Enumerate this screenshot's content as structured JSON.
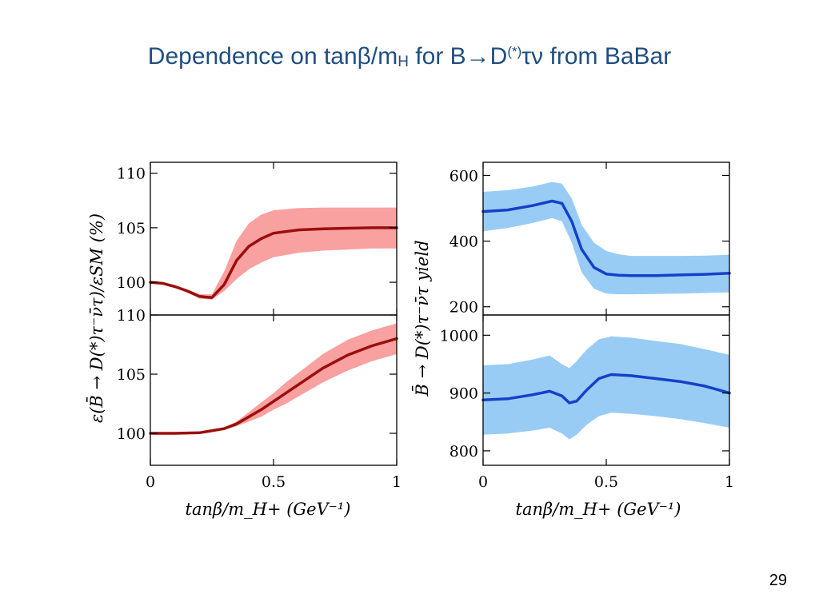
{
  "slide": {
    "title_parts": [
      "Dependence on tanβ/m",
      "H",
      " for B→D",
      "(*)",
      "τν from BaBar"
    ],
    "page_number": "29"
  },
  "colors": {
    "title": "#1f4e82",
    "left_band": "#f9a0a0",
    "left_line": "#9b0e0e",
    "right_band": "#99ccf5",
    "right_line": "#1541c8"
  },
  "chart_data": [
    {
      "type": "line",
      "panel": "left-top",
      "ylabel": "ε(B̄ → D(*)τ⁻ν̄τ)/εSM (%)",
      "xlim": [
        0,
        1
      ],
      "ylim": [
        97,
        111
      ],
      "yticks": [
        100,
        105,
        110
      ],
      "x": [
        0,
        0.05,
        0.1,
        0.15,
        0.2,
        0.25,
        0.3,
        0.35,
        0.4,
        0.45,
        0.5,
        0.6,
        0.7,
        0.8,
        0.9,
        1.0
      ],
      "central": [
        100.0,
        99.9,
        99.6,
        99.2,
        98.7,
        98.6,
        99.8,
        102.0,
        103.3,
        104.0,
        104.5,
        104.8,
        104.9,
        104.95,
        105.0,
        105.0
      ],
      "lower": [
        100.0,
        99.85,
        99.5,
        99.05,
        98.5,
        98.4,
        99.2,
        100.3,
        101.2,
        101.8,
        102.3,
        102.7,
        102.9,
        103.0,
        103.1,
        103.1
      ],
      "upper": [
        100.0,
        99.95,
        99.7,
        99.35,
        98.9,
        98.9,
        101.0,
        103.8,
        105.4,
        106.2,
        106.6,
        106.8,
        106.85,
        106.85,
        106.85,
        106.85
      ]
    },
    {
      "type": "line",
      "panel": "left-bottom",
      "xlabel": "tanβ/m_H+ (GeV⁻¹)",
      "xlim": [
        0,
        1
      ],
      "ylim": [
        97.3,
        110
      ],
      "yticks": [
        100,
        105,
        110
      ],
      "xticks": [
        "0",
        "0.5",
        "1"
      ],
      "x": [
        0,
        0.1,
        0.2,
        0.3,
        0.35,
        0.4,
        0.45,
        0.5,
        0.55,
        0.6,
        0.7,
        0.8,
        0.9,
        1.0
      ],
      "central": [
        100.0,
        100.0,
        100.05,
        100.4,
        100.8,
        101.4,
        102.0,
        102.7,
        103.4,
        104.1,
        105.5,
        106.6,
        107.4,
        108.0
      ],
      "lower": [
        100.0,
        100.0,
        100.03,
        100.3,
        100.6,
        101.0,
        101.4,
        102.0,
        102.5,
        103.1,
        104.3,
        105.3,
        106.1,
        106.7
      ],
      "upper": [
        100.0,
        100.0,
        100.07,
        100.5,
        101.0,
        101.8,
        102.6,
        103.4,
        104.3,
        105.1,
        106.7,
        107.9,
        108.7,
        109.3
      ]
    },
    {
      "type": "line",
      "panel": "right-top",
      "ylabel": "B̄ → D(*)τ⁻ν̄τ yield",
      "xlim": [
        0,
        1
      ],
      "ylim": [
        175,
        640
      ],
      "yticks": [
        200,
        400,
        600
      ],
      "x": [
        0,
        0.1,
        0.2,
        0.28,
        0.32,
        0.36,
        0.4,
        0.45,
        0.5,
        0.55,
        0.6,
        0.7,
        0.8,
        0.9,
        1.0
      ],
      "central": [
        490,
        495,
        508,
        522,
        515,
        460,
        375,
        320,
        300,
        296,
        295,
        295,
        297,
        299,
        302
      ],
      "lower": [
        430,
        440,
        455,
        470,
        460,
        395,
        305,
        255,
        240,
        238,
        238,
        239,
        240,
        242,
        244
      ],
      "upper": [
        550,
        555,
        566,
        580,
        575,
        530,
        450,
        395,
        370,
        360,
        355,
        355,
        355,
        356,
        358
      ]
    },
    {
      "type": "line",
      "panel": "right-bottom",
      "xlabel": "tanβ/m_H+ (GeV⁻¹)",
      "xlim": [
        0,
        1
      ],
      "ylim": [
        775,
        1035
      ],
      "yticks": [
        800,
        900,
        1000
      ],
      "xticks": [
        "0",
        "0.5",
        "1"
      ],
      "x": [
        0,
        0.1,
        0.2,
        0.27,
        0.32,
        0.35,
        0.38,
        0.42,
        0.47,
        0.52,
        0.6,
        0.7,
        0.8,
        0.9,
        1.0
      ],
      "central": [
        888,
        890,
        897,
        903,
        895,
        883,
        886,
        905,
        925,
        932,
        930,
        925,
        920,
        912,
        900
      ],
      "lower": [
        828,
        830,
        835,
        840,
        830,
        820,
        828,
        845,
        860,
        866,
        864,
        860,
        855,
        848,
        840
      ],
      "upper": [
        948,
        950,
        958,
        965,
        950,
        943,
        955,
        975,
        993,
        998,
        996,
        990,
        985,
        976,
        966
      ]
    }
  ]
}
